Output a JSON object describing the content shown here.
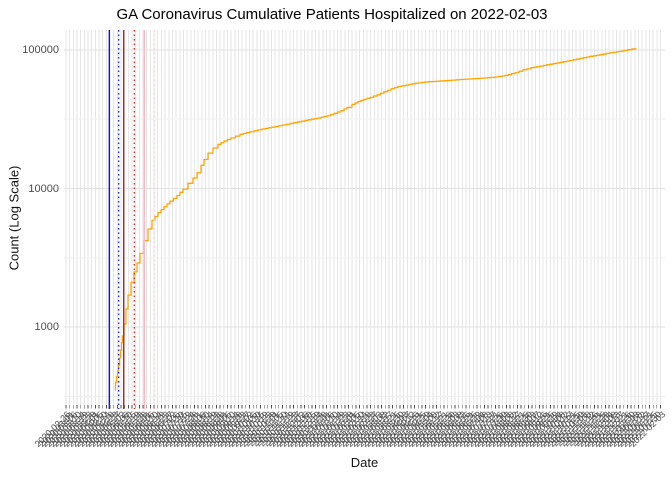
{
  "chart_data": {
    "type": "line",
    "title": "GA Coronavirus Cumulative Patients Hospitalized on 2022-02-03",
    "xlabel": "Date",
    "ylabel": "Count (Log Scale)",
    "y_scale": "log10",
    "ylim": [
      273,
      139000
    ],
    "y_major_ticks": [
      100000,
      10000,
      1000
    ],
    "y_minor_gridlines": [
      31623,
      3162,
      316
    ],
    "grid": true,
    "legend": "none",
    "x_axis": {
      "label_start": "2020-02-26",
      "label_end": "2022-02-03",
      "tick_count": 163,
      "tick_label_rotation_deg": 45,
      "note": "dense daily date tick labels overlap into an illegible band"
    },
    "series": [
      {
        "name": "cumulative-patients-hospitalized",
        "color": "#FFA500",
        "points": [
          [
            0.0849,
            350
          ],
          [
            0.0857,
            400
          ],
          [
            0.0874,
            440
          ],
          [
            0.089,
            480
          ],
          [
            0.0907,
            530
          ],
          [
            0.0924,
            600
          ],
          [
            0.094,
            680
          ],
          [
            0.0957,
            770
          ],
          [
            0.0973,
            860
          ],
          [
            0.0998,
            1050
          ],
          [
            0.1031,
            1350
          ],
          [
            0.1065,
            1700
          ],
          [
            0.1115,
            2100
          ],
          [
            0.1165,
            2500
          ],
          [
            0.1215,
            2900
          ],
          [
            0.1264,
            3400
          ],
          [
            0.1331,
            4200
          ],
          [
            0.1398,
            5100
          ],
          [
            0.1464,
            5900
          ],
          [
            0.1564,
            6700
          ],
          [
            0.1664,
            7400
          ],
          [
            0.1764,
            8100
          ],
          [
            0.188,
            8900
          ],
          [
            0.198,
            9900
          ],
          [
            0.2063,
            10900
          ],
          [
            0.2146,
            11900
          ],
          [
            0.2213,
            13000
          ],
          [
            0.228,
            14700
          ],
          [
            0.233,
            16200
          ],
          [
            0.2396,
            18000
          ],
          [
            0.2479,
            19600
          ],
          [
            0.2562,
            20800
          ],
          [
            0.2662,
            22000
          ],
          [
            0.2779,
            23200
          ],
          [
            0.2928,
            24600
          ],
          [
            0.3095,
            25700
          ],
          [
            0.3295,
            26900
          ],
          [
            0.3511,
            28000
          ],
          [
            0.3761,
            29500
          ],
          [
            0.401,
            31000
          ],
          [
            0.4226,
            32300
          ],
          [
            0.4376,
            33500
          ],
          [
            0.4493,
            34900
          ],
          [
            0.4609,
            36500
          ],
          [
            0.4709,
            38500
          ],
          [
            0.4792,
            40500
          ],
          [
            0.4892,
            42500
          ],
          [
            0.4992,
            44000
          ],
          [
            0.5091,
            45500
          ],
          [
            0.5208,
            47500
          ],
          [
            0.5324,
            50000
          ],
          [
            0.5441,
            52500
          ],
          [
            0.5557,
            54500
          ],
          [
            0.569,
            55800
          ],
          [
            0.584,
            57500
          ],
          [
            0.6006,
            58800
          ],
          [
            0.6189,
            59500
          ],
          [
            0.6389,
            60300
          ],
          [
            0.6589,
            61200
          ],
          [
            0.6788,
            62000
          ],
          [
            0.6988,
            62800
          ],
          [
            0.7171,
            63800
          ],
          [
            0.7337,
            65500
          ],
          [
            0.7504,
            68500
          ],
          [
            0.7637,
            72000
          ],
          [
            0.777,
            74500
          ],
          [
            0.792,
            76500
          ],
          [
            0.8086,
            79000
          ],
          [
            0.8253,
            81500
          ],
          [
            0.8419,
            84000
          ],
          [
            0.8586,
            87000
          ],
          [
            0.8752,
            90000
          ],
          [
            0.8918,
            92500
          ],
          [
            0.9085,
            95500
          ],
          [
            0.9251,
            98000
          ],
          [
            0.9384,
            100500
          ],
          [
            0.9517,
            103000
          ]
        ]
      }
    ],
    "event_lines": [
      {
        "name": "event-line-blue-solid",
        "pos": 0.0754,
        "color": "#1414CC",
        "style": "solid"
      },
      {
        "name": "event-line-blue-dotted",
        "pos": 0.091,
        "color": "#2222D6",
        "style": "dotted"
      },
      {
        "name": "event-line-red-solid",
        "pos": 0.0993,
        "color": "#C41E1E",
        "style": "solid"
      },
      {
        "name": "event-line-red-dotted",
        "pos": 0.117,
        "color": "#DC2828",
        "style": "dotted"
      },
      {
        "name": "event-line-pink-solid",
        "pos": 0.1336,
        "color": "#FFB6C1",
        "style": "solid"
      },
      {
        "name": "event-line-pink-dotted",
        "pos": 0.1503,
        "color": "#FFD1D9",
        "style": "dotted"
      }
    ],
    "colors": {
      "background": "#FFFFFF",
      "grid_vertical": "#E6E6E6",
      "grid_major": "#E2E2E2",
      "grid_minor": "#EFEFEF",
      "axis_tick_text": "#4D4D4D",
      "axis_tick_mark": "#4D4D4D",
      "title_text": "#000000",
      "line": "#FFA500"
    }
  }
}
